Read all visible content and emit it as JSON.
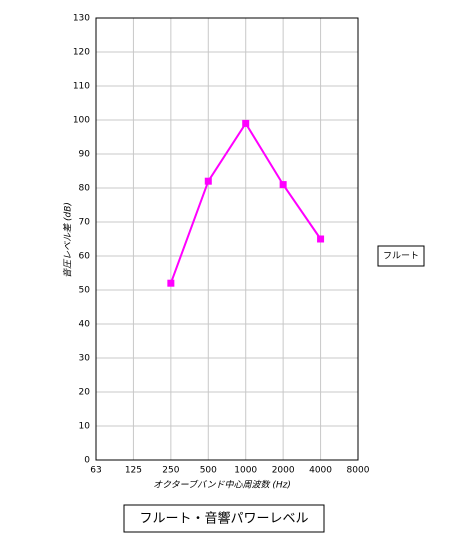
{
  "chart_data": {
    "type": "line",
    "y_label": "音圧レベル差 (dB)",
    "x_label": "オクターブバンド中心周波数 (Hz)",
    "title": "フルート・音響パワーレベル",
    "categories": [
      "63",
      "125",
      "250",
      "500",
      "1000",
      "2000",
      "4000",
      "8000"
    ],
    "series": [
      {
        "name": "フルート",
        "color": "#ff00ff",
        "values": [
          null,
          null,
          52,
          82,
          99,
          81,
          65,
          null
        ]
      }
    ],
    "ylim": [
      0,
      130
    ],
    "yticks": [
      0,
      10,
      20,
      30,
      40,
      50,
      60,
      70,
      80,
      90,
      100,
      110,
      120,
      130
    ],
    "grid": true,
    "legend": "right"
  }
}
